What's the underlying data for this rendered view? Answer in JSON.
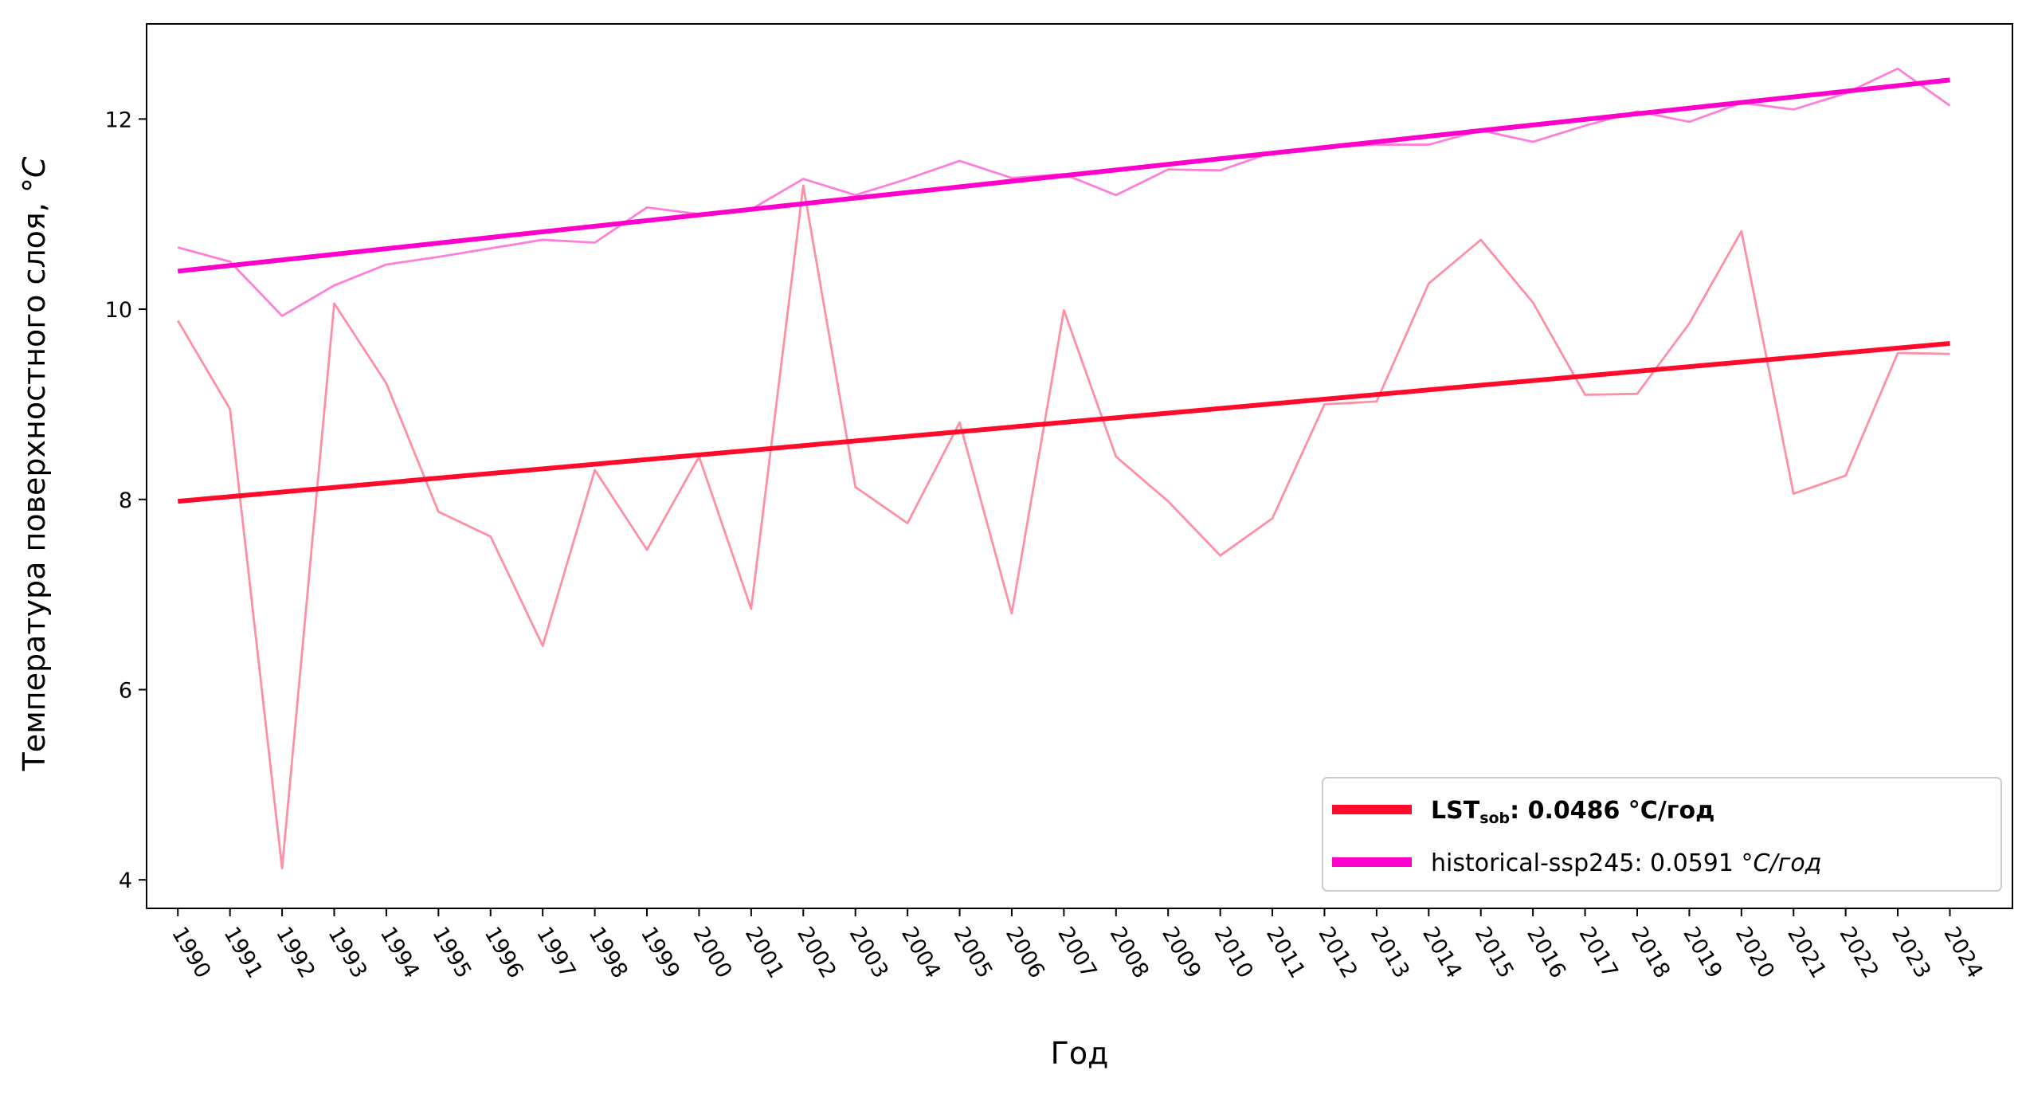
{
  "chart_data": {
    "type": "line",
    "xlabel": "Год",
    "ylabel": "Температура поверхностного слоя, °C",
    "ylabel_prefix": "Температура поверхностного слоя, °",
    "ylabel_unit": "C",
    "x": [
      1990,
      1991,
      1992,
      1993,
      1994,
      1995,
      1996,
      1997,
      1998,
      1999,
      2000,
      2001,
      2002,
      2003,
      2004,
      2005,
      2006,
      2007,
      2008,
      2009,
      2010,
      2011,
      2012,
      2013,
      2014,
      2015,
      2016,
      2017,
      2018,
      2019,
      2020,
      2021,
      2022,
      2023,
      2024
    ],
    "xlim": [
      1989.4,
      2025.2
    ],
    "ylim": [
      3.7,
      13.0
    ],
    "yticks": [
      4,
      6,
      8,
      10,
      12
    ],
    "grid": false,
    "legend_position": "bottom-right",
    "series": [
      {
        "name": "historical-ssp245",
        "role": "raw",
        "color": "#ff7fd8",
        "values": [
          10.65,
          10.5,
          9.93,
          10.25,
          10.47,
          10.55,
          10.64,
          10.73,
          10.7,
          11.07,
          11.0,
          11.05,
          11.37,
          11.2,
          11.37,
          11.56,
          11.38,
          11.42,
          11.2,
          11.47,
          11.46,
          11.65,
          11.7,
          11.73,
          11.73,
          11.88,
          11.76,
          11.93,
          12.08,
          11.97,
          12.17,
          12.1,
          12.27,
          12.53,
          12.14
        ]
      },
      {
        "name": "LSTsob",
        "role": "raw",
        "color": "#ff8fa4",
        "values": [
          9.88,
          8.95,
          4.12,
          10.06,
          9.22,
          7.87,
          7.61,
          6.46,
          8.31,
          7.47,
          8.45,
          6.85,
          11.3,
          8.13,
          7.75,
          8.81,
          6.8,
          9.99,
          8.45,
          7.98,
          7.41,
          7.8,
          9.0,
          9.03,
          10.27,
          10.73,
          10.07,
          9.1,
          9.11,
          9.85,
          10.82,
          8.06,
          8.25,
          9.54,
          9.53
        ]
      },
      {
        "name": "historical-ssp245",
        "role": "trend",
        "color": "#ff00cc",
        "start": 10.4,
        "end": 12.41
      },
      {
        "name": "LSTsob",
        "role": "trend",
        "color": "#ff0a2a",
        "start": 7.98,
        "end": 9.64
      }
    ],
    "legend": [
      {
        "color": "#ff0a2a",
        "name_main": "LST",
        "name_sub": "sob",
        "label_rest": ": 0.0486 °C/год",
        "bold": true
      },
      {
        "color": "#ff00cc",
        "label_plain": "historical-ssp245: 0.0591 °",
        "label_italic": "C/год",
        "bold": false
      }
    ]
  }
}
